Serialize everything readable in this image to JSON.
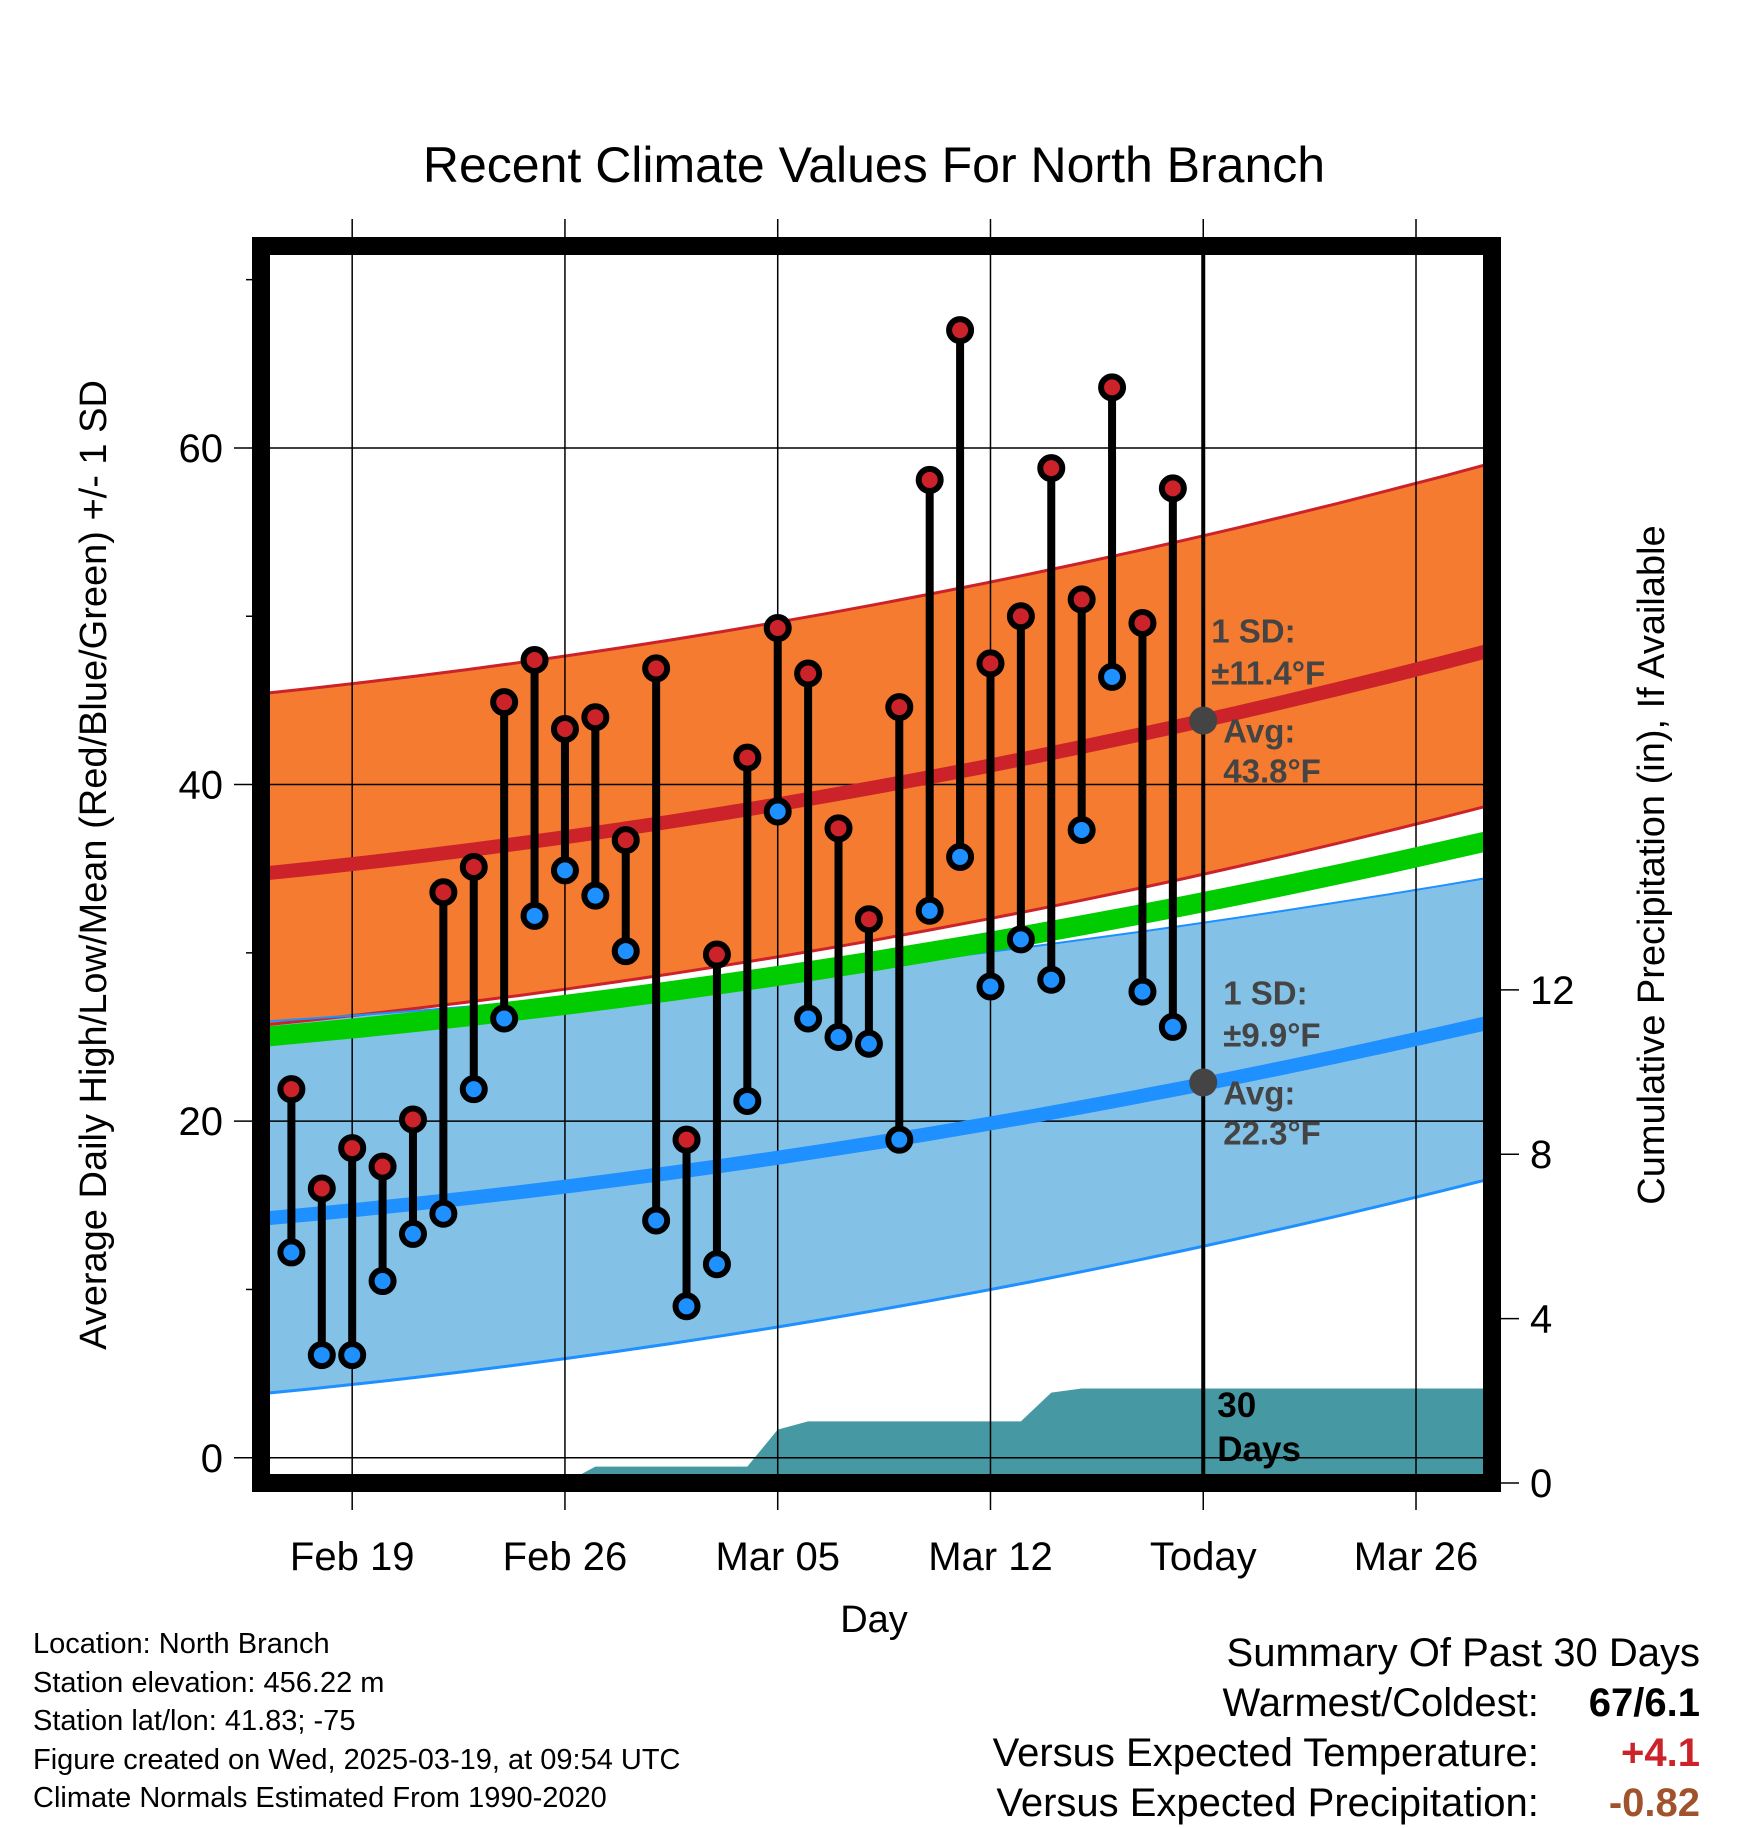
{
  "chart_data": {
    "type": "line",
    "title": "Recent Climate Values For North Branch",
    "xlabel": "Day",
    "ylabel": "Average Daily High/Low/Mean (Red/Blue/Green) +/- 1 SD",
    "y2label": "Cumulative Precipitation (in), If Available",
    "ylim": [
      -1.5,
      72
    ],
    "y2lim": [
      0,
      30.1
    ],
    "xlim": [
      -3,
      37.5
    ],
    "x_tick_labels": [
      {
        "day": 0,
        "label": "Feb 19"
      },
      {
        "day": 7,
        "label": "Feb 26"
      },
      {
        "day": 14,
        "label": "Mar 05"
      },
      {
        "day": 21,
        "label": "Mar 12"
      },
      {
        "day": 28,
        "label": "Today"
      },
      {
        "day": 35,
        "label": "Mar 26"
      }
    ],
    "y_ticks": [
      0,
      20,
      40,
      60
    ],
    "y2_ticks": [
      0,
      4,
      8,
      12
    ],
    "grid": true,
    "normals": {
      "high_mean": {
        "start": 34.7,
        "end": 48.0
      },
      "high_sd_upper": {
        "start": 45.4,
        "end": 59.1
      },
      "high_sd_lower": {
        "start": 25.7,
        "end": 38.8
      },
      "low_mean": {
        "start": 14.2,
        "end": 25.9
      },
      "low_sd_upper": {
        "start": 25.9,
        "end": 34.5
      },
      "low_sd_lower": {
        "start": 3.8,
        "end": 16.6
      },
      "daily_mean": {
        "start": 25.0,
        "end": 36.7
      }
    },
    "series": [
      {
        "name": "High",
        "color": "#cc2229",
        "x": [
          -2,
          -1,
          0,
          1,
          2,
          3,
          4,
          5,
          6,
          7,
          8,
          9,
          10,
          11,
          12,
          13,
          14,
          15,
          16,
          17,
          18,
          19,
          20,
          21,
          22,
          23,
          24,
          25,
          26,
          27
        ],
        "values": [
          21.9,
          16.0,
          18.4,
          17.3,
          20.1,
          33.6,
          35.1,
          44.9,
          47.4,
          43.3,
          44.0,
          36.7,
          46.9,
          18.9,
          29.9,
          41.6,
          49.3,
          46.6,
          37.4,
          32.0,
          44.6,
          58.1,
          67.0,
          47.2,
          50.0,
          58.8,
          51.0,
          63.6,
          49.6,
          57.6
        ]
      },
      {
        "name": "Low",
        "color": "#1e90ff",
        "x": [
          -2,
          -1,
          0,
          1,
          2,
          3,
          4,
          5,
          6,
          7,
          8,
          9,
          10,
          11,
          12,
          13,
          14,
          15,
          16,
          17,
          18,
          19,
          20,
          21,
          22,
          23,
          24,
          25,
          26,
          27
        ],
        "values": [
          12.2,
          6.1,
          6.1,
          10.5,
          13.3,
          14.5,
          21.9,
          26.1,
          32.2,
          34.9,
          33.4,
          30.1,
          14.1,
          9.0,
          11.5,
          21.2,
          38.4,
          26.1,
          25.0,
          24.6,
          18.9,
          32.5,
          35.7,
          28.0,
          30.8,
          28.4,
          37.3,
          46.4,
          27.7,
          25.6
        ]
      }
    ],
    "precipitation": {
      "color": "#4698a2",
      "points": [
        [
          7,
          0
        ],
        [
          8,
          0.4
        ],
        [
          13,
          0.4
        ],
        [
          14,
          1.3
        ],
        [
          15,
          1.5
        ],
        [
          22,
          1.5
        ],
        [
          23,
          2.2
        ],
        [
          24,
          2.3
        ],
        [
          37.5,
          2.3
        ]
      ]
    },
    "today_marker": {
      "day": 28,
      "high_label": [
        "1 SD:",
        "±11.4°F",
        "Avg:",
        "43.8°F"
      ],
      "high_avg": 43.8,
      "low_label": [
        "1 SD:",
        "±9.9°F",
        "Avg:",
        "22.3°F"
      ],
      "low_avg": 22.3,
      "days_label": [
        "30",
        "Days"
      ]
    },
    "colors": {
      "high_band": "#f47b2f",
      "high_mean": "#cc2229",
      "low_band": "#84c1e6",
      "low_mean": "#1e90ff",
      "daily_mean": "#00cc00",
      "frame": "#000000"
    }
  },
  "info": {
    "location": "Location: North Branch",
    "elevation": "Station elevation: 456.22 m",
    "latlon": "Station lat/lon: 41.83; -75",
    "created": "Figure created on Wed, 2025-03-19, at 09:54 UTC",
    "normals": "Climate Normals Estimated From 1990-2020"
  },
  "summary": {
    "heading": "Summary Of Past 30 Days",
    "warmest_label": "Warmest/Coldest:",
    "warmest_value": "67/6.1",
    "temp_label": "Versus Expected Temperature:",
    "temp_value": "+4.1",
    "temp_color": "#cc2229",
    "precip_label": "Versus Expected Precipitation:",
    "precip_value": "-0.82",
    "precip_color": "#a0522d"
  }
}
